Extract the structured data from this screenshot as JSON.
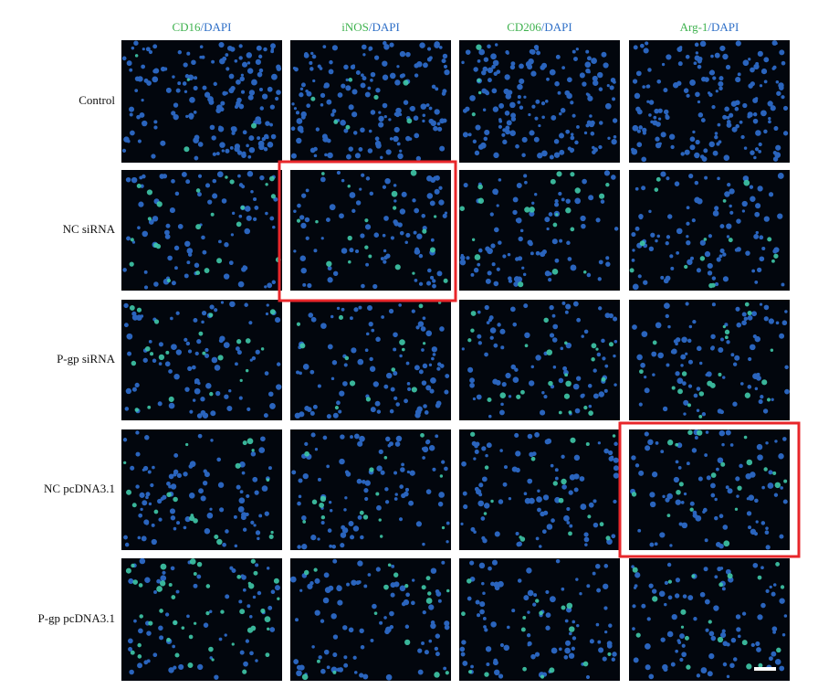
{
  "columns": [
    {
      "marker": "CD16",
      "stain": "/DAPI"
    },
    {
      "marker": "iNOS",
      "stain": "/DAPI"
    },
    {
      "marker": "CD206",
      "stain": "/DAPI"
    },
    {
      "marker": "Arg-1",
      "stain": "/DAPI"
    }
  ],
  "rows": [
    "Control",
    "NC siRNA",
    "P-gp siRNA",
    "NC pcDNA3.1",
    "P-gp pcDNA3.1"
  ]
}
